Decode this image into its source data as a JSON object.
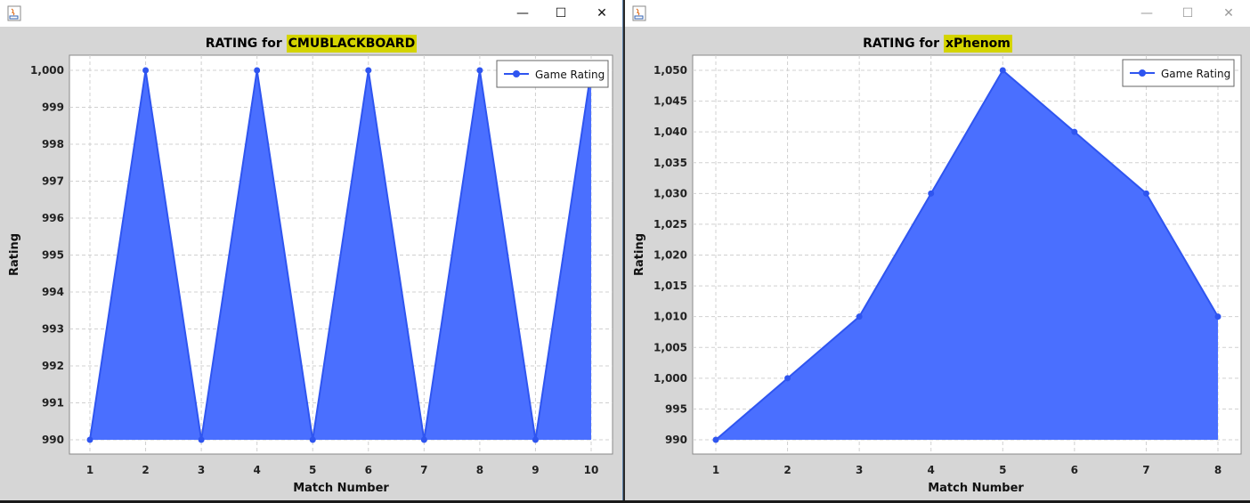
{
  "windows": [
    {
      "title_prefix": "RATING for ",
      "title_name": "CMUBLACKBOARD",
      "legend": "Game Rating",
      "controls": {
        "minimize": "—",
        "maximize": "☐",
        "close": "✕"
      }
    },
    {
      "title_prefix": "RATING for ",
      "title_name": "xPhenom",
      "legend": "Game Rating",
      "controls": {
        "minimize": "—",
        "maximize": "☐",
        "close": "✕"
      }
    }
  ],
  "colors": {
    "fill": "#4a6fff",
    "line": "#2f55f0",
    "highlight": "#d4d400"
  },
  "chart_data": [
    {
      "type": "area",
      "title": "RATING for CMUBLACKBOARD",
      "xlabel": "Match Number",
      "ylabel": "Rating",
      "series": [
        {
          "name": "Game Rating",
          "x": [
            1,
            2,
            3,
            4,
            5,
            6,
            7,
            8,
            9,
            10
          ],
          "values": [
            990,
            1000,
            990,
            1000,
            990,
            1000,
            990,
            1000,
            990,
            1000
          ]
        }
      ],
      "xticks": [
        "1",
        "2",
        "3",
        "4",
        "5",
        "6",
        "7",
        "8",
        "9",
        "10"
      ],
      "yticks": [
        "990",
        "991",
        "992",
        "993",
        "994",
        "995",
        "996",
        "997",
        "998",
        "999",
        "1,000"
      ],
      "ylim": [
        990,
        1000
      ],
      "grid": true,
      "legend_position": "top-right"
    },
    {
      "type": "area",
      "title": "RATING for xPhenom",
      "xlabel": "Match Number",
      "ylabel": "Rating",
      "series": [
        {
          "name": "Game Rating",
          "x": [
            1,
            2,
            3,
            4,
            5,
            6,
            7,
            8
          ],
          "values": [
            990,
            1000,
            1010,
            1030,
            1050,
            1040,
            1030,
            1010
          ]
        }
      ],
      "xticks": [
        "1",
        "2",
        "3",
        "4",
        "5",
        "6",
        "7",
        "8"
      ],
      "yticks": [
        "990",
        "995",
        "1,000",
        "1,005",
        "1,010",
        "1,015",
        "1,020",
        "1,025",
        "1,030",
        "1,035",
        "1,040",
        "1,045",
        "1,050"
      ],
      "ylim": [
        990,
        1050
      ],
      "grid": true,
      "legend_position": "top-right"
    }
  ]
}
